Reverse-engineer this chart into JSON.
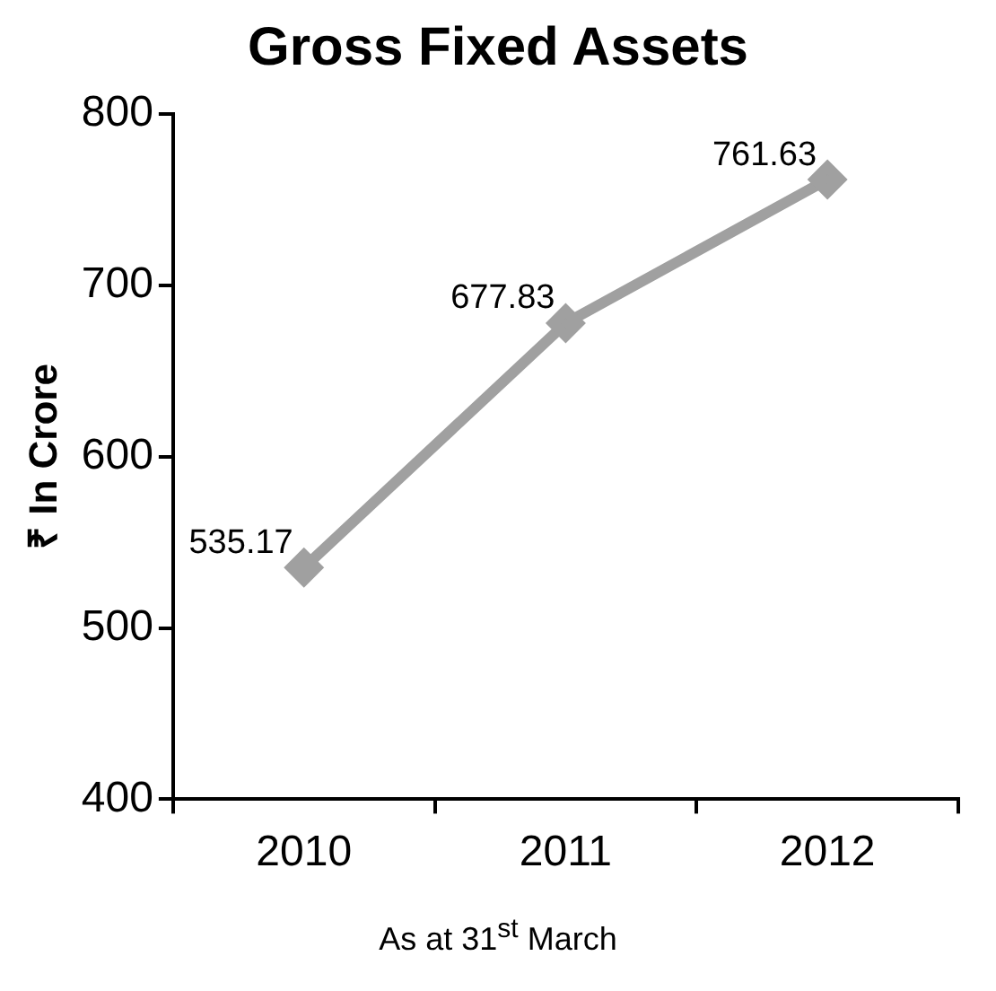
{
  "chart_data": {
    "type": "line",
    "title": "Gross Fixed Assets",
    "xlabel": "As at 31$^{st}$ March",
    "ylabel": "₹ In Crore",
    "categories": [
      "2010",
      "2011",
      "2012"
    ],
    "series": [
      {
        "color": "#a0a0a0",
        "values": [
          535.17,
          677.83,
          761.63
        ]
      }
    ],
    "ylim": [
      400,
      800
    ],
    "yticks": [
      400,
      500,
      600,
      700,
      800
    ],
    "data_labels": true,
    "marker": "diamond",
    "line_style": "solid",
    "grid": false,
    "legend": false
  }
}
